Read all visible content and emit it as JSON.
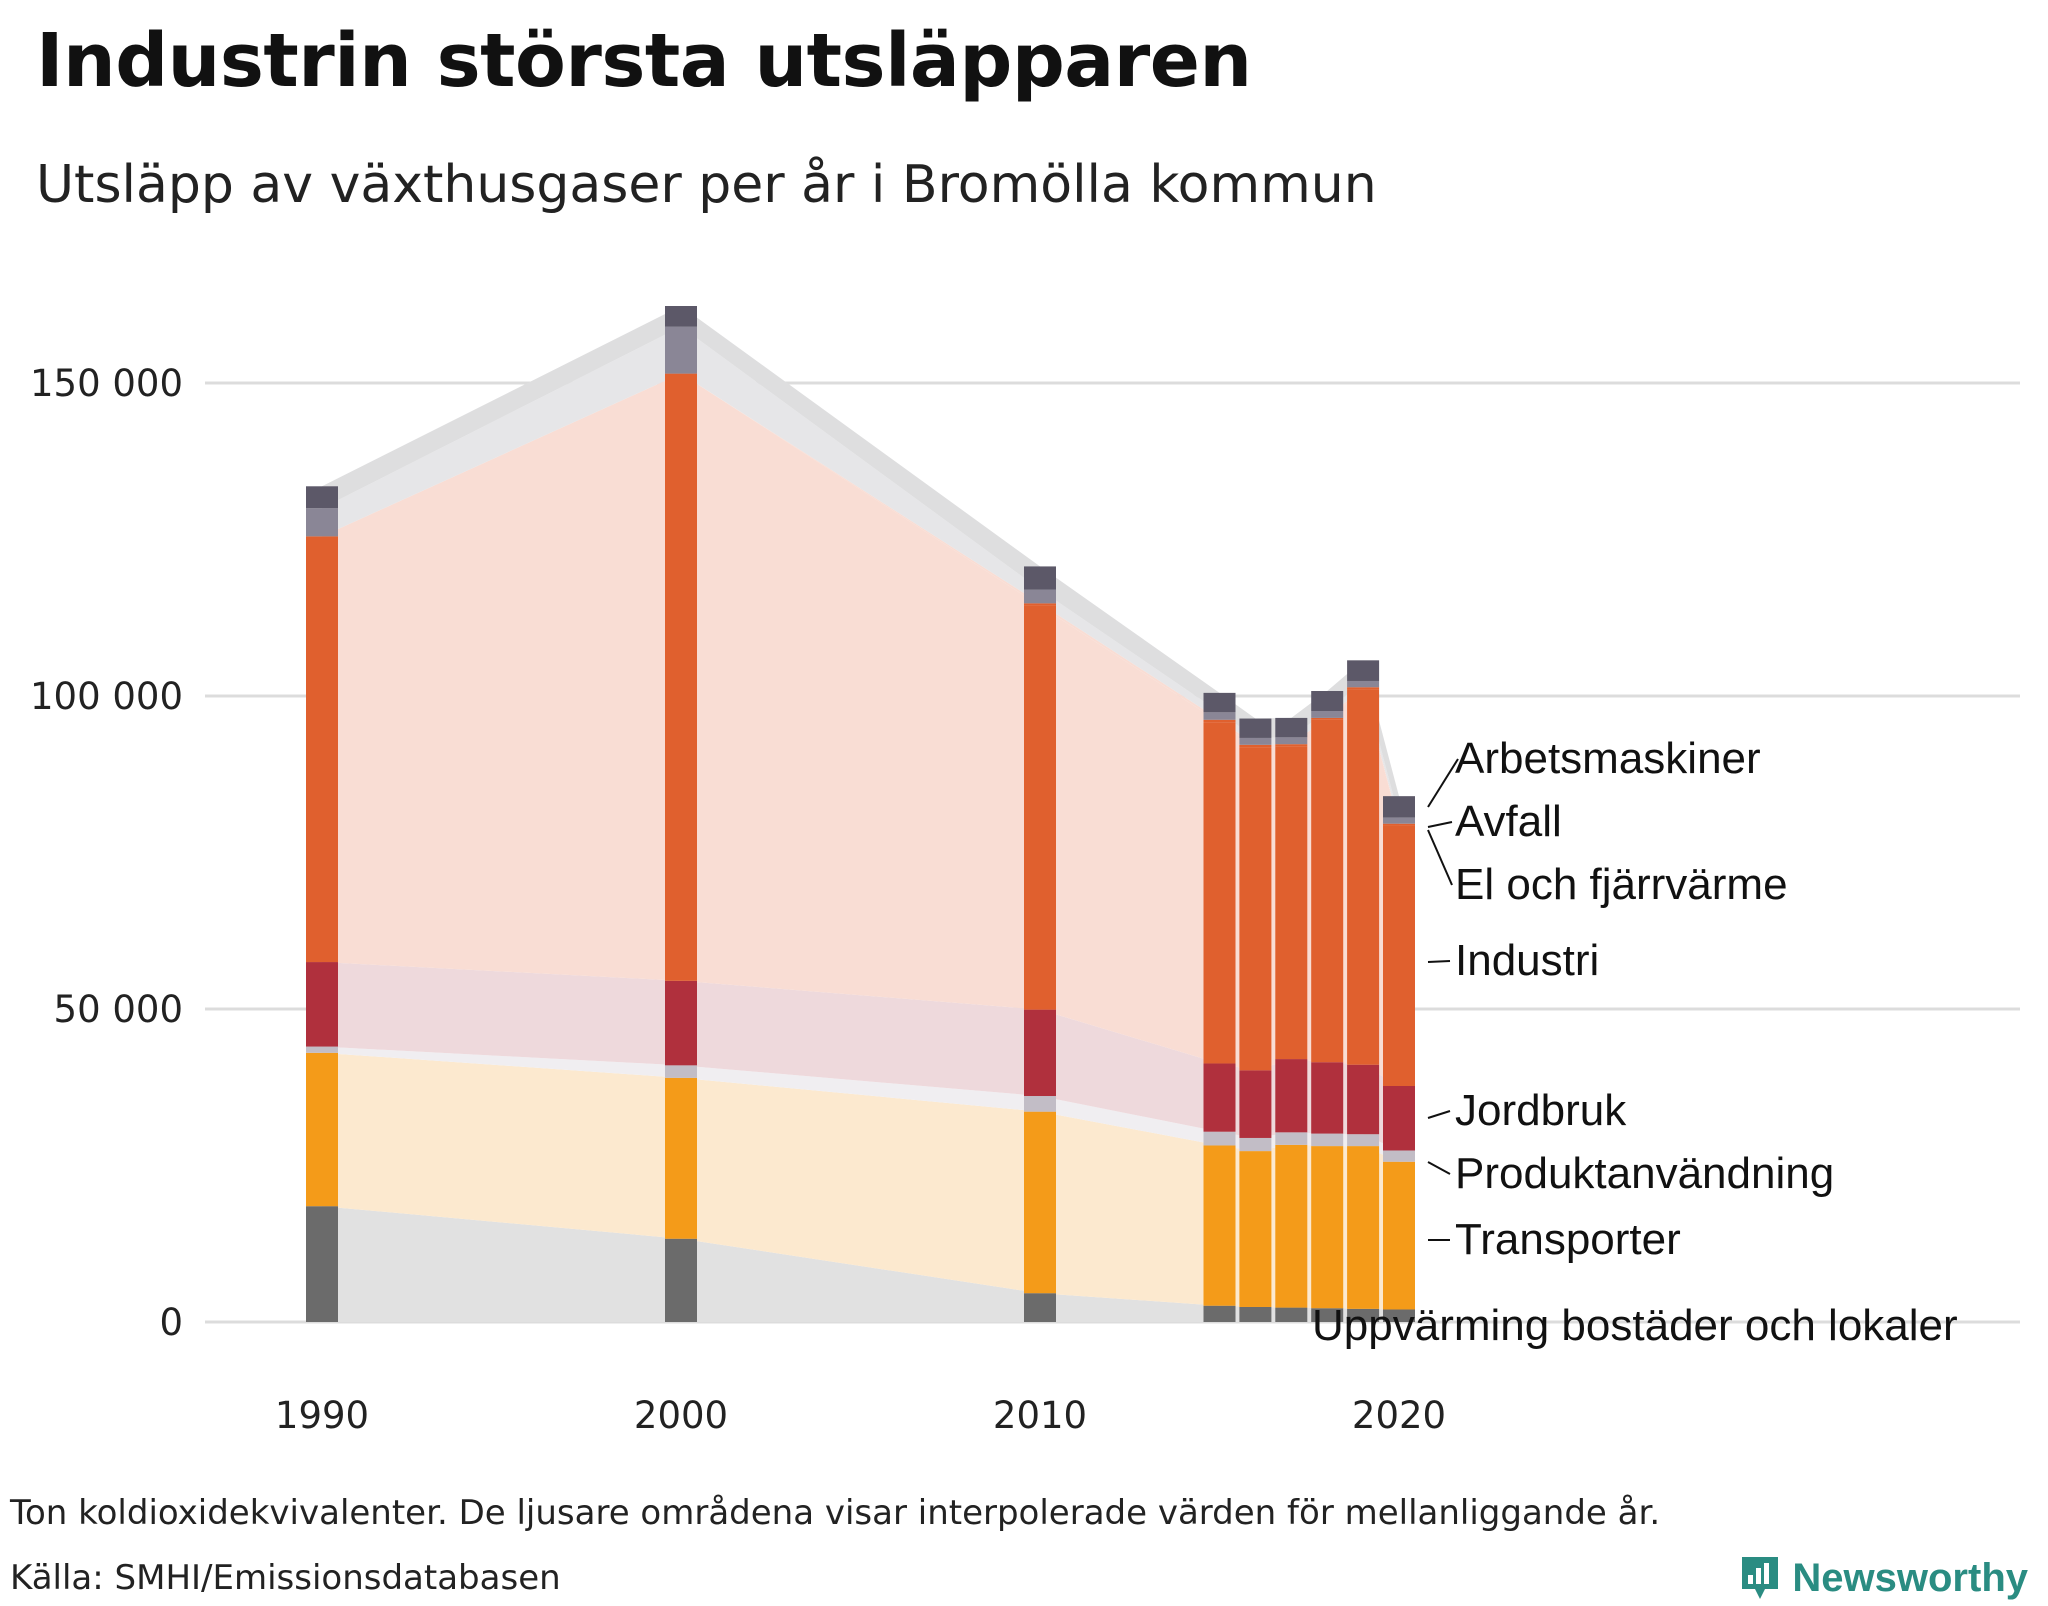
{
  "chart_data": {
    "type": "stacked-bar",
    "title": "Industrin största utsläpparen",
    "subtitle": "Utsläpp av växthusgaser per år i Bromölla kommun",
    "xlabel": "",
    "ylabel": "",
    "ylim": [
      0,
      165000
    ],
    "xlim": [
      1990,
      2020
    ],
    "y_ticks": [
      {
        "value": 0,
        "label": "0"
      },
      {
        "value": 50000,
        "label": "50 000"
      },
      {
        "value": 100000,
        "label": "100 000"
      },
      {
        "value": 150000,
        "label": "150 000"
      }
    ],
    "x_ticks": [
      {
        "value": 1990,
        "label": "1990"
      },
      {
        "value": 2000,
        "label": "2000"
      },
      {
        "value": 2010,
        "label": "2010"
      },
      {
        "value": 2020,
        "label": "2020"
      }
    ],
    "grid": true,
    "years": [
      1990,
      2000,
      2010,
      2015,
      2016,
      2017,
      2018,
      2019,
      2020
    ],
    "series": [
      {
        "name": "Uppvärming bostäder och lokaler",
        "color": "#6b6b6b",
        "light": "#e1e1e1",
        "values": [
          18500,
          13300,
          4600,
          2600,
          2400,
          2300,
          2200,
          2100,
          2000
        ]
      },
      {
        "name": "Transporter",
        "color": "#f49b19",
        "light": "#fce9cf",
        "values": [
          24500,
          25700,
          29000,
          25600,
          24900,
          26000,
          25900,
          26000,
          23600
        ]
      },
      {
        "name": "Produktanvändning",
        "color": "#c2bdc6",
        "light": "#f0eef1",
        "values": [
          1000,
          2000,
          2500,
          2200,
          2100,
          2000,
          2000,
          1900,
          1800
        ]
      },
      {
        "name": "Jordbruk",
        "color": "#b0303d",
        "light": "#eed9dc",
        "values": [
          13500,
          13500,
          13800,
          10900,
          10800,
          11700,
          11400,
          11100,
          10300
        ]
      },
      {
        "name": "Industri",
        "color": "#e0602e",
        "light": "#f9ddd4",
        "values": [
          68000,
          97000,
          64500,
          54500,
          51600,
          49900,
          54700,
          60000,
          41600
        ]
      },
      {
        "name": "El och fjärrvärme",
        "color": "#e0602e",
        "light": "#f9ddd4",
        "values": [
          0,
          0,
          400,
          400,
          400,
          400,
          300,
          300,
          300
        ]
      },
      {
        "name": "Avfall",
        "color": "#8a8696",
        "light": "#e6e6e8",
        "values": [
          4500,
          7500,
          2200,
          1200,
          1100,
          1100,
          1100,
          1000,
          1000
        ]
      },
      {
        "name": "Arbetsmaskiner",
        "color": "#5c5868",
        "light": "#dededf",
        "values": [
          3500,
          3300,
          3700,
          3100,
          3100,
          3100,
          3200,
          3300,
          3400
        ]
      }
    ],
    "segment_labels": [
      "Arbetsmaskiner",
      "Avfall",
      "El och fjärrvärme",
      "Industri",
      "Jordbruk",
      "Produktanvändning",
      "Transporter",
      "Uppvärming bostäder och lokaler"
    ]
  },
  "footnote": "Ton koldioxidekvivalenter. De ljusare områdena visar interpolerade värden för mellanliggande år.",
  "source": "Källa: SMHI/Emissionsdatabasen",
  "brand": "Newsworthy"
}
